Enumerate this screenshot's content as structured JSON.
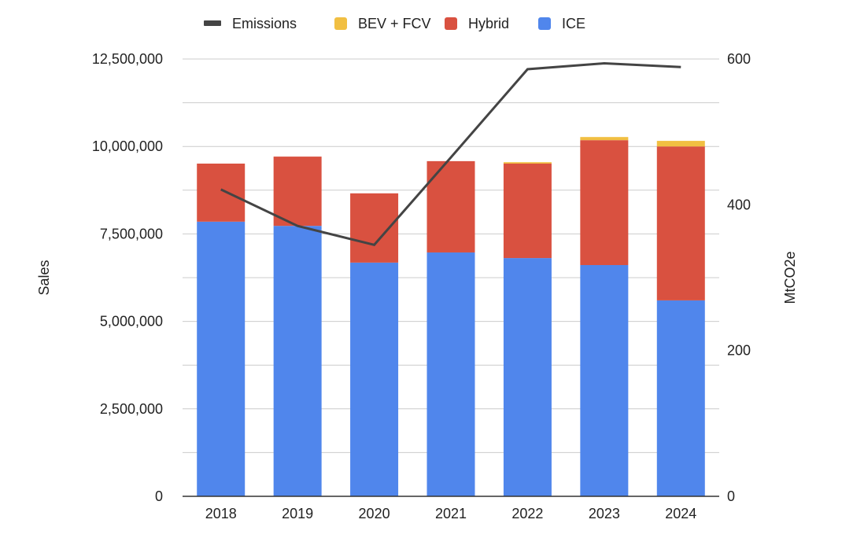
{
  "chart_data": {
    "type": "bar",
    "stacked": true,
    "title": "",
    "categories": [
      "2018",
      "2019",
      "2020",
      "2021",
      "2022",
      "2023",
      "2024"
    ],
    "series": [
      {
        "name": "ICE",
        "axis": "left",
        "type": "bar",
        "color": "#5086ec",
        "values": [
          7850000,
          7730000,
          6680000,
          6970000,
          6810000,
          6610000,
          5600000
        ]
      },
      {
        "name": "Hybrid",
        "axis": "left",
        "type": "bar",
        "color": "#d95140",
        "values": [
          1660000,
          1980000,
          1980000,
          2610000,
          2700000,
          3570000,
          4400000
        ]
      },
      {
        "name": "BEV + FCV",
        "axis": "left",
        "type": "bar",
        "color": "#f1bf42",
        "values": [
          0,
          0,
          0,
          0,
          40000,
          90000,
          160000
        ]
      },
      {
        "name": "Emissions",
        "axis": "right",
        "type": "line",
        "color": "#444444",
        "values": [
          421,
          371,
          345,
          465,
          586,
          594,
          589
        ]
      }
    ],
    "legend": {
      "position": "top",
      "entries": [
        "Emissions",
        "BEV + FCV",
        "Hybrid",
        "ICE"
      ]
    },
    "xlabel": "",
    "ylabel": "Sales",
    "ylabel_right": "MtCO2e",
    "ylim": [
      0,
      12500000
    ],
    "ylim_right": [
      0,
      600
    ],
    "yticks": [
      "0",
      "2,500,000",
      "5,000,000",
      "7,500,000",
      "10,000,000",
      "12,500,000"
    ],
    "ytick_values": [
      0,
      2500000,
      5000000,
      7500000,
      10000000,
      12500000
    ],
    "yticks_right": [
      "0",
      "200",
      "400",
      "600"
    ],
    "ytick_values_right": [
      0,
      200,
      400,
      600
    ],
    "grid": true
  }
}
